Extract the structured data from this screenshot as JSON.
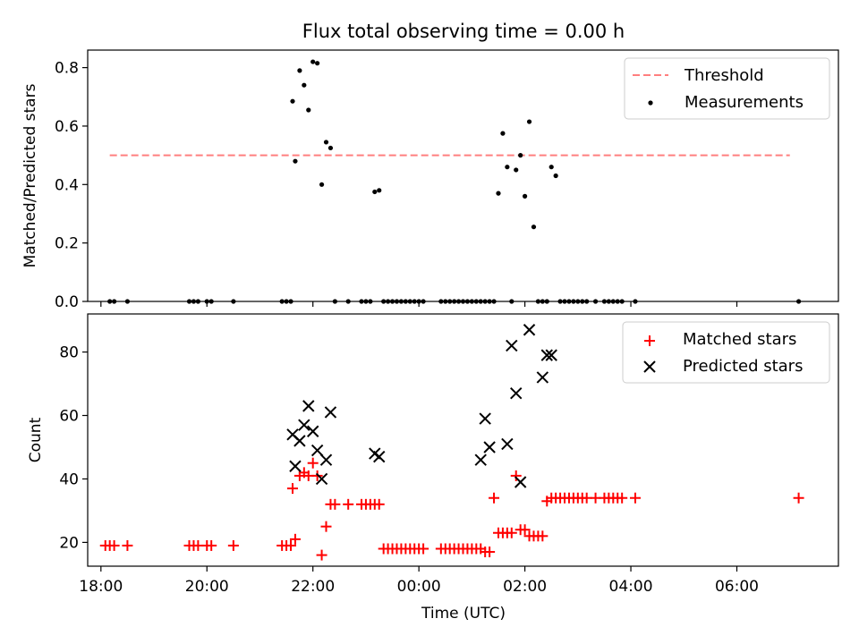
{
  "title": "Flux total observing time = 0.00 h",
  "chart_data": [
    {
      "type": "scatter",
      "ylabel": "Matched/Predicted stars",
      "xlabel": "",
      "xlim": [
        "17:45",
        "07:55"
      ],
      "ylim": [
        0,
        0.86
      ],
      "yticks": [
        0.0,
        0.2,
        0.4,
        0.6,
        0.8
      ],
      "ytick_labels": [
        "0.0",
        "0.2",
        "0.4",
        "0.6",
        "0.8"
      ],
      "legend": "top-right",
      "series": [
        {
          "name": "Threshold",
          "kind": "dashed-line",
          "color": "#ff7f7f",
          "x": [
            "18:10",
            "07:00"
          ],
          "y": [
            0.5,
            0.5
          ]
        },
        {
          "name": "Measurements",
          "kind": "dot",
          "color": "#000000",
          "x": [
            "18:10",
            "18:15",
            "18:30",
            "19:40",
            "19:45",
            "19:50",
            "20:00",
            "20:05",
            "20:30",
            "21:25",
            "21:30",
            "21:35",
            "21:37",
            "21:40",
            "21:45",
            "21:50",
            "21:55",
            "22:00",
            "22:05",
            "22:10",
            "22:15",
            "22:20",
            "22:25",
            "22:40",
            "22:55",
            "23:00",
            "23:05",
            "23:10",
            "23:15",
            "23:20",
            "23:25",
            "23:30",
            "23:35",
            "23:40",
            "23:45",
            "23:50",
            "23:55",
            "24:00",
            "24:05",
            "24:25",
            "24:30",
            "24:35",
            "24:40",
            "24:45",
            "24:50",
            "24:55",
            "25:00",
            "25:05",
            "25:10",
            "25:15",
            "25:20",
            "25:25",
            "25:30",
            "25:35",
            "25:40",
            "25:45",
            "25:50",
            "25:55",
            "26:00",
            "26:05",
            "26:10",
            "26:15",
            "26:20",
            "26:25",
            "26:30",
            "26:35",
            "26:40",
            "26:45",
            "26:50",
            "26:55",
            "27:00",
            "27:05",
            "27:10",
            "27:20",
            "27:30",
            "27:35",
            "27:40",
            "27:45",
            "27:50",
            "28:05",
            "31:10"
          ],
          "y": [
            0,
            0,
            0,
            0,
            0,
            0,
            0,
            0,
            0,
            0,
            0,
            0,
            0.685,
            0.48,
            0.79,
            0.74,
            0.655,
            0.82,
            0.815,
            0.4,
            0.545,
            0.525,
            0,
            0,
            0,
            0,
            0,
            0.375,
            0.38,
            0,
            0,
            0,
            0,
            0,
            0,
            0,
            0,
            0,
            0,
            0,
            0,
            0,
            0,
            0,
            0,
            0,
            0,
            0,
            0,
            0,
            0,
            0,
            0.37,
            0.575,
            0.46,
            0,
            0.45,
            0.5,
            0.36,
            0.615,
            0.255,
            0,
            0,
            0,
            0.46,
            0.43,
            0,
            0,
            0,
            0,
            0,
            0,
            0,
            0,
            0,
            0,
            0,
            0,
            0,
            0,
            0
          ]
        }
      ]
    },
    {
      "type": "scatter",
      "ylabel": "Count",
      "xlabel": "Time (UTC)",
      "xlim": [
        "17:45",
        "07:55"
      ],
      "ylim": [
        12.5,
        92
      ],
      "yticks": [
        20,
        40,
        60,
        80
      ],
      "ytick_labels": [
        "20",
        "40",
        "60",
        "80"
      ],
      "xticks": [
        "18:00",
        "20:00",
        "22:00",
        "00:00",
        "02:00",
        "04:00",
        "06:00"
      ],
      "legend": "top-right",
      "series": [
        {
          "name": "Matched stars",
          "marker": "plus",
          "color": "#ff0000",
          "x": [
            "18:05",
            "18:10",
            "18:15",
            "18:30",
            "19:40",
            "19:45",
            "19:50",
            "20:00",
            "20:05",
            "20:30",
            "21:25",
            "21:30",
            "21:35",
            "21:37",
            "21:40",
            "21:45",
            "21:50",
            "21:55",
            "22:00",
            "22:05",
            "22:10",
            "22:15",
            "22:20",
            "22:25",
            "22:40",
            "22:55",
            "23:00",
            "23:05",
            "23:10",
            "23:15",
            "23:20",
            "23:25",
            "23:30",
            "23:35",
            "23:40",
            "23:45",
            "23:50",
            "23:55",
            "24:00",
            "24:05",
            "24:25",
            "24:30",
            "24:35",
            "24:40",
            "24:45",
            "24:50",
            "24:55",
            "25:00",
            "25:05",
            "25:10",
            "25:15",
            "25:20",
            "25:25",
            "25:30",
            "25:35",
            "25:40",
            "25:45",
            "25:50",
            "25:55",
            "26:00",
            "26:05",
            "26:10",
            "26:15",
            "26:20",
            "26:25",
            "26:30",
            "26:35",
            "26:40",
            "26:45",
            "26:50",
            "26:55",
            "27:00",
            "27:05",
            "27:10",
            "27:20",
            "27:30",
            "27:35",
            "27:40",
            "27:45",
            "27:50",
            "28:05",
            "31:10"
          ],
          "y": [
            19,
            19,
            19,
            19,
            19,
            19,
            19,
            19,
            19,
            19,
            19,
            19,
            19,
            37,
            21,
            41,
            42,
            41,
            45,
            41,
            16,
            25,
            32,
            32,
            32,
            32,
            32,
            32,
            32,
            32,
            18,
            18,
            18,
            18,
            18,
            18,
            18,
            18,
            18,
            18,
            18,
            18,
            18,
            18,
            18,
            18,
            18,
            18,
            18,
            18,
            17,
            17,
            34,
            23,
            23,
            23,
            23,
            41,
            24,
            24,
            22,
            22,
            22,
            22,
            33,
            34,
            34,
            34,
            34,
            34,
            34,
            34,
            34,
            34,
            34,
            34,
            34,
            34,
            34,
            34,
            34,
            34
          ]
        },
        {
          "name": "Predicted stars",
          "marker": "x",
          "color": "#000000",
          "x": [
            "21:37",
            "21:40",
            "21:45",
            "21:50",
            "21:55",
            "22:00",
            "22:05",
            "22:10",
            "22:15",
            "22:20",
            "23:10",
            "23:15",
            "25:10",
            "25:15",
            "25:20",
            "25:40",
            "25:45",
            "25:50",
            "25:55",
            "26:05",
            "26:20",
            "26:25",
            "26:30"
          ],
          "y": [
            54,
            44,
            52,
            57,
            63,
            55,
            49,
            40,
            46,
            61,
            48,
            47,
            46,
            59,
            50,
            51,
            82,
            67,
            39,
            87,
            72,
            79,
            79
          ]
        }
      ]
    }
  ]
}
